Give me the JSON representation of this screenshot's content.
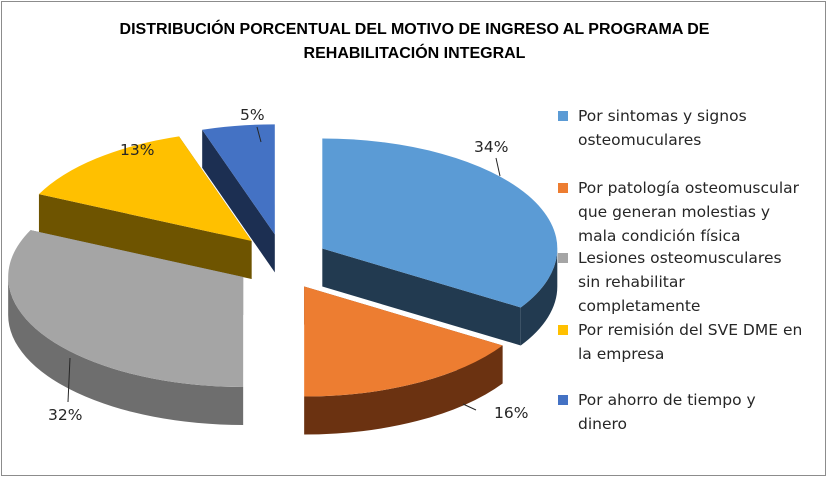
{
  "chart_data": {
    "type": "pie",
    "title_lines": [
      "DISTRIBUCIÓN PORCENTUAL DEL MOTIVO DE INGRESO AL PROGRAMA DE",
      "REHABILITACIÓN INTEGRAL"
    ],
    "legend_position": "right",
    "slices": [
      {
        "label": "Por sintomas y signos\nosteomuculares",
        "value": 34,
        "display": "34%",
        "color": "#5b9bd5",
        "side": "#223a50"
      },
      {
        "label": "Por patología osteomuscular\nque generan molestias y\nmala condición física",
        "value": 16,
        "display": "16%",
        "color": "#ed7d31",
        "side": "#6b3211"
      },
      {
        "label": "Lesiones osteomusculares\nsin rehabilitar\ncompletamente",
        "value": 32,
        "display": "32%",
        "color": "#a5a5a5",
        "side": "#6e6e6e"
      },
      {
        "label": "Por remisión del SVE DME en\nla empresa",
        "value": 13,
        "display": "13%",
        "color": "#ffc000",
        "side": "#6e5400"
      },
      {
        "label": "Por ahorro de tiempo y\ndinero",
        "value": 5,
        "display": "5%",
        "color": "#4472c4",
        "side": "#1c2f52"
      }
    ]
  }
}
